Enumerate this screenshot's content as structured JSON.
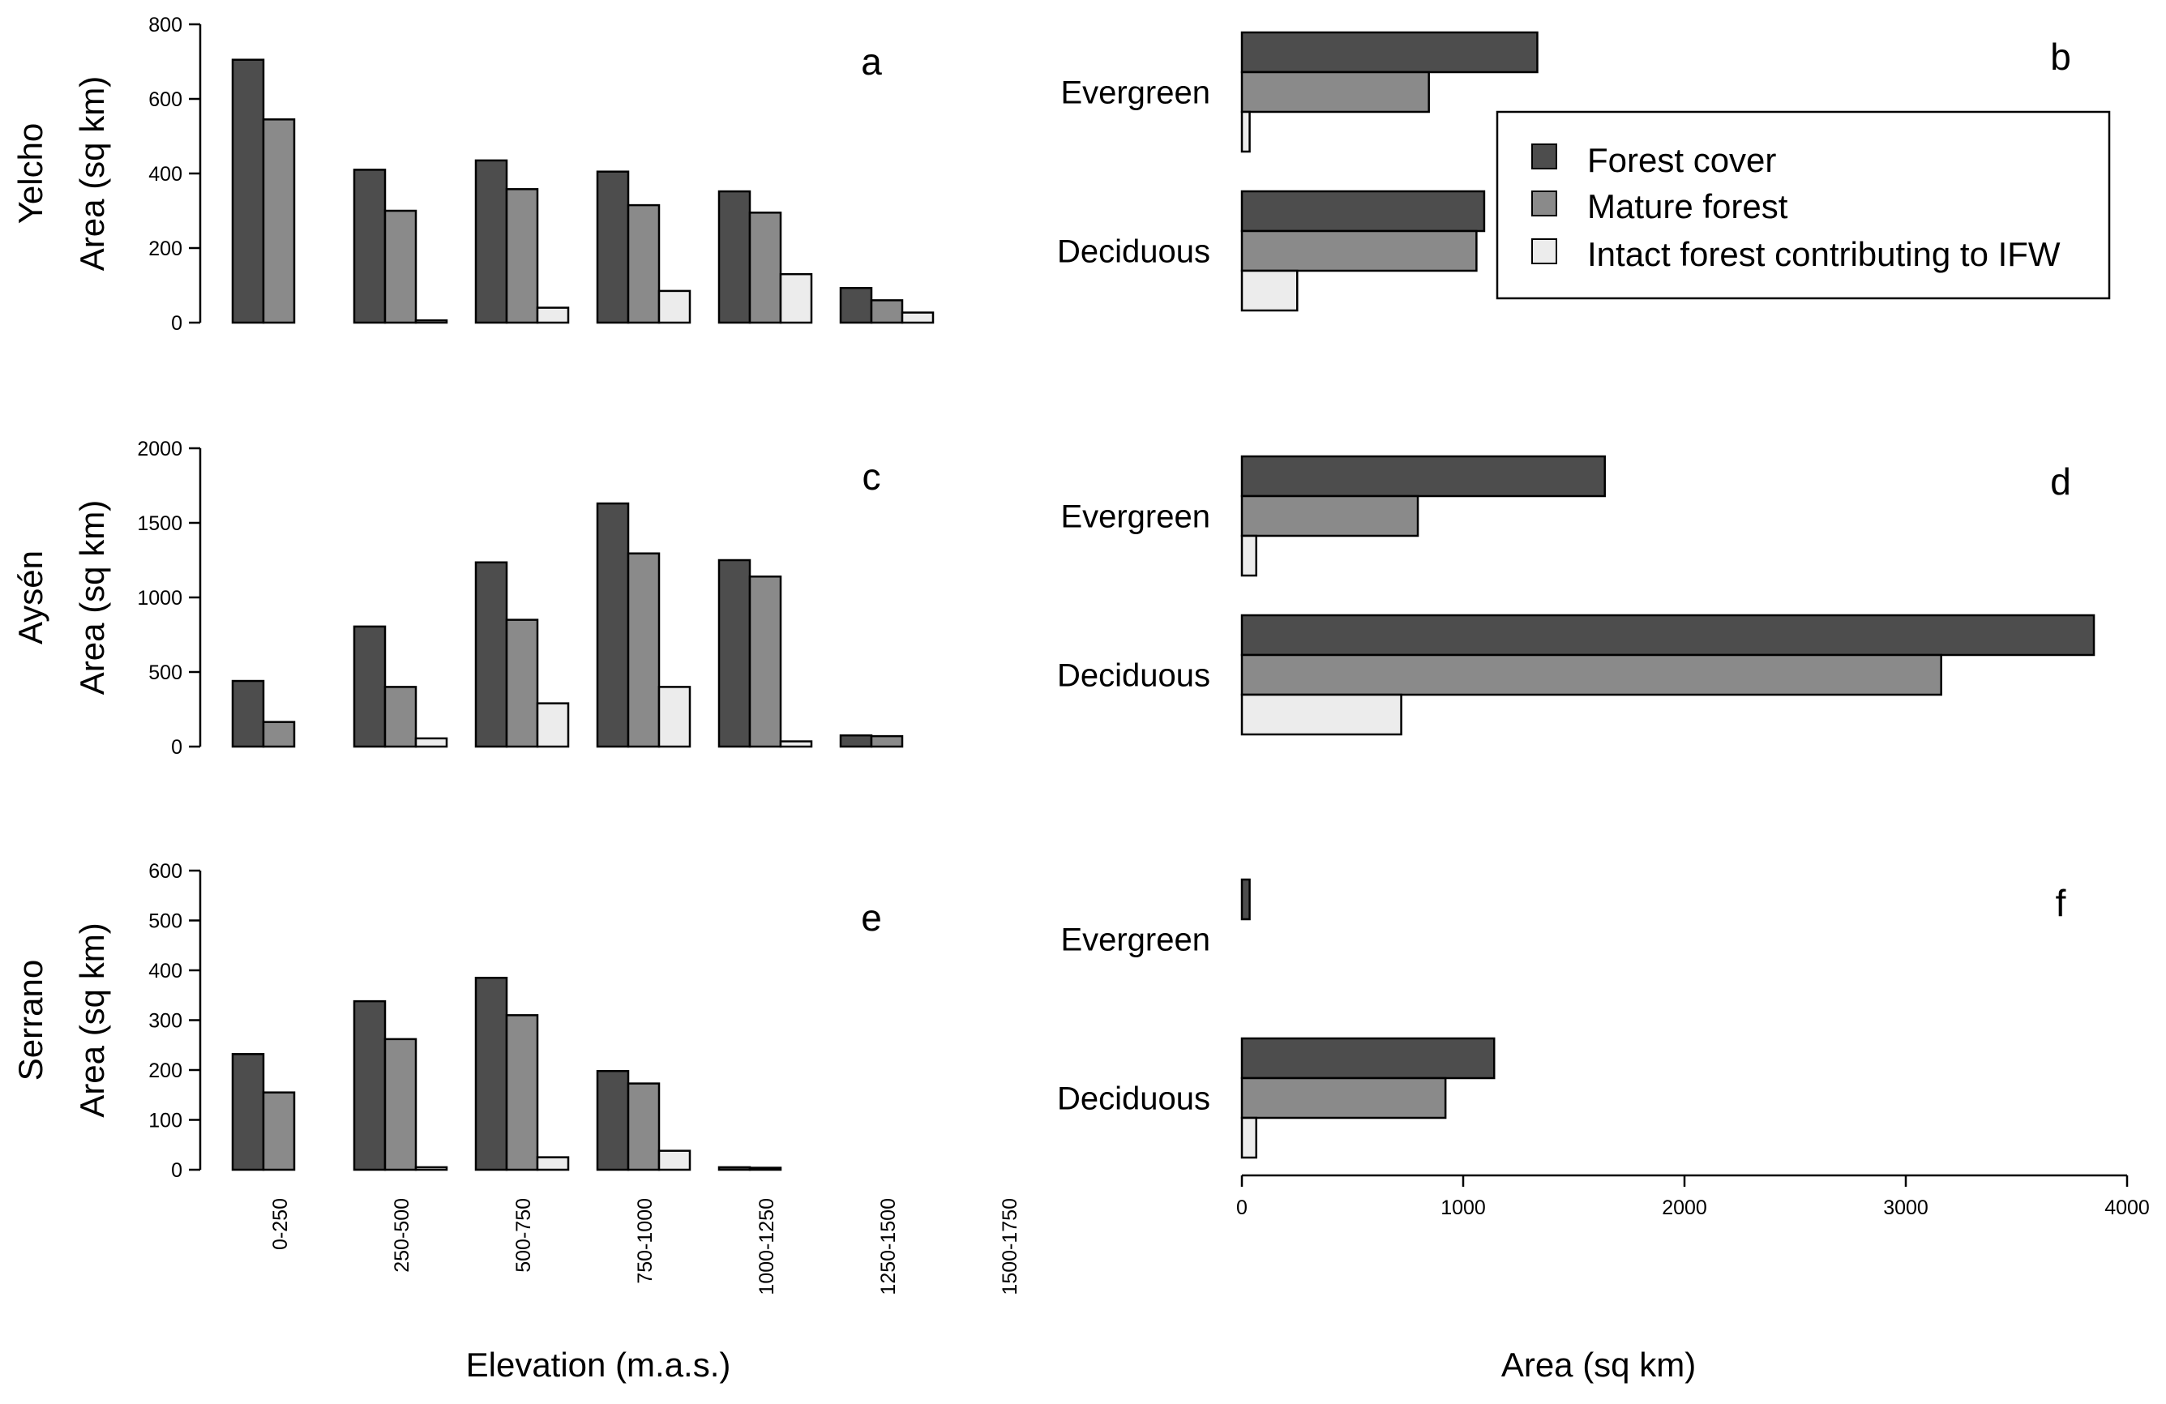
{
  "legend": {
    "items": [
      {
        "name": "Forest cover",
        "color": "#4d4d4d"
      },
      {
        "name": "Mature forest",
        "color": "#8a8a8a"
      },
      {
        "name": "Intact forest contributing to IFW",
        "color": "#ececec"
      }
    ]
  },
  "xlabels": {
    "elevation": "Elevation (m.a.s.)",
    "area": "Area (sq km)"
  },
  "chart_data": [
    {
      "type": "bar",
      "panel": "a",
      "region": "Yelcho",
      "ylabel": "Area (sq km)",
      "categories": [
        "0-250",
        "250-500",
        "500-750",
        "750-1000",
        "1000-1250",
        "1250-1500",
        "1500-1750"
      ],
      "ylim": [
        0,
        800
      ],
      "yticks": [
        0,
        200,
        400,
        600,
        800
      ],
      "series": [
        {
          "name": "Forest cover",
          "values": [
            705,
            410,
            435,
            405,
            352,
            93,
            0
          ]
        },
        {
          "name": "Mature forest",
          "values": [
            545,
            300,
            358,
            315,
            295,
            60,
            0
          ]
        },
        {
          "name": "Intact forest contributing to IFW",
          "values": [
            0,
            6,
            40,
            85,
            130,
            27,
            0
          ]
        }
      ]
    },
    {
      "type": "bar",
      "panel": "b",
      "region": "Yelcho",
      "orientation": "horizontal",
      "categories": [
        "Evergreen",
        "Deciduous"
      ],
      "xlim": [
        0,
        4000
      ],
      "series": [
        {
          "name": "Forest cover",
          "values": [
            1335,
            1095
          ]
        },
        {
          "name": "Mature forest",
          "values": [
            845,
            1060
          ]
        },
        {
          "name": "Intact forest contributing to IFW",
          "values": [
            35,
            250
          ]
        }
      ]
    },
    {
      "type": "bar",
      "panel": "c",
      "region": "Aysén",
      "ylabel": "Area (sq km)",
      "categories": [
        "0-250",
        "250-500",
        "500-750",
        "750-1000",
        "1000-1250",
        "1250-1500",
        "1500-1750"
      ],
      "ylim": [
        0,
        2000
      ],
      "yticks": [
        0,
        500,
        1000,
        1500,
        2000
      ],
      "series": [
        {
          "name": "Forest cover",
          "values": [
            440,
            805,
            1235,
            1630,
            1250,
            75,
            0
          ]
        },
        {
          "name": "Mature forest",
          "values": [
            165,
            400,
            850,
            1295,
            1140,
            70,
            0
          ]
        },
        {
          "name": "Intact forest contributing to IFW",
          "values": [
            0,
            55,
            290,
            400,
            35,
            0,
            0
          ]
        }
      ]
    },
    {
      "type": "bar",
      "panel": "d",
      "region": "Aysén",
      "orientation": "horizontal",
      "categories": [
        "Evergreen",
        "Deciduous"
      ],
      "xlim": [
        0,
        4000
      ],
      "series": [
        {
          "name": "Forest cover",
          "values": [
            1640,
            3850
          ]
        },
        {
          "name": "Mature forest",
          "values": [
            795,
            3160
          ]
        },
        {
          "name": "Intact forest contributing to IFW",
          "values": [
            65,
            720
          ]
        }
      ]
    },
    {
      "type": "bar",
      "panel": "e",
      "region": "Serrano",
      "ylabel": "Area (sq km)",
      "categories": [
        "0-250",
        "250-500",
        "500-750",
        "750-1000",
        "1000-1250",
        "1250-1500",
        "1500-1750"
      ],
      "ylim": [
        0,
        600
      ],
      "yticks": [
        0,
        100,
        200,
        300,
        400,
        500,
        600
      ],
      "series": [
        {
          "name": "Forest cover",
          "values": [
            232,
            338,
            385,
            198,
            5,
            0,
            0
          ]
        },
        {
          "name": "Mature forest",
          "values": [
            155,
            262,
            310,
            173,
            4,
            0,
            0
          ]
        },
        {
          "name": "Intact forest contributing to IFW",
          "values": [
            0,
            5,
            25,
            38,
            0,
            0,
            0
          ]
        }
      ]
    },
    {
      "type": "bar",
      "panel": "f",
      "region": "Serrano",
      "orientation": "horizontal",
      "categories": [
        "Evergreen",
        "Deciduous"
      ],
      "xlim": [
        0,
        4000
      ],
      "xticks": [
        0,
        1000,
        2000,
        3000,
        4000
      ],
      "series": [
        {
          "name": "Forest cover",
          "values": [
            35,
            1140
          ]
        },
        {
          "name": "Mature forest",
          "values": [
            0,
            920
          ]
        },
        {
          "name": "Intact forest contributing to IFW",
          "values": [
            0,
            65
          ]
        }
      ]
    }
  ]
}
